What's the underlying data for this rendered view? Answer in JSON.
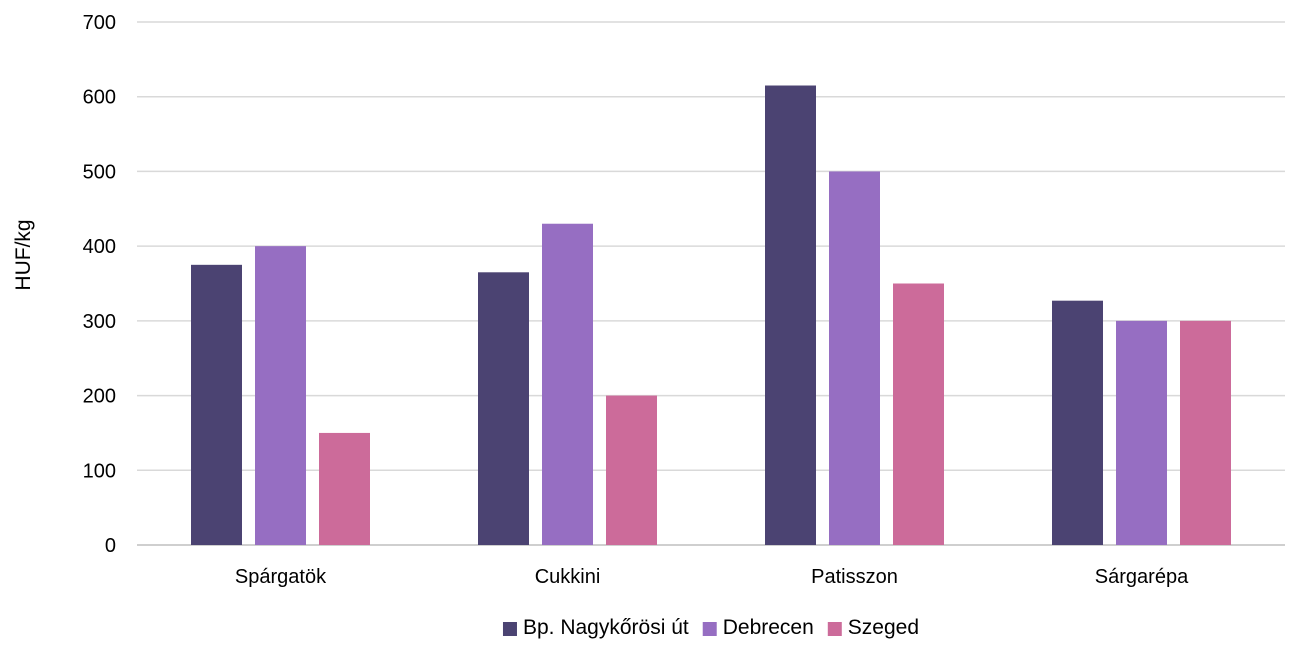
{
  "chart_data": {
    "type": "bar",
    "title": "",
    "xlabel": "",
    "ylabel": "HUF/kg",
    "categories": [
      "Spárgatök",
      "Cukkini",
      "Patisszon",
      "Sárgarépa"
    ],
    "series": [
      {
        "name": "Bp. Nagykőrösi út",
        "color": "#4b4372",
        "values": [
          375,
          365,
          615,
          327
        ]
      },
      {
        "name": "Debrecen",
        "color": "#966ec2",
        "values": [
          400,
          430,
          500,
          300
        ]
      },
      {
        "name": "Szeged",
        "color": "#cc6b9a",
        "values": [
          150,
          200,
          350,
          300
        ]
      }
    ],
    "ylim": [
      0,
      700
    ],
    "yticks": [
      0,
      100,
      200,
      300,
      400,
      500,
      600,
      700
    ],
    "grid": true,
    "legend_position": "bottom"
  }
}
